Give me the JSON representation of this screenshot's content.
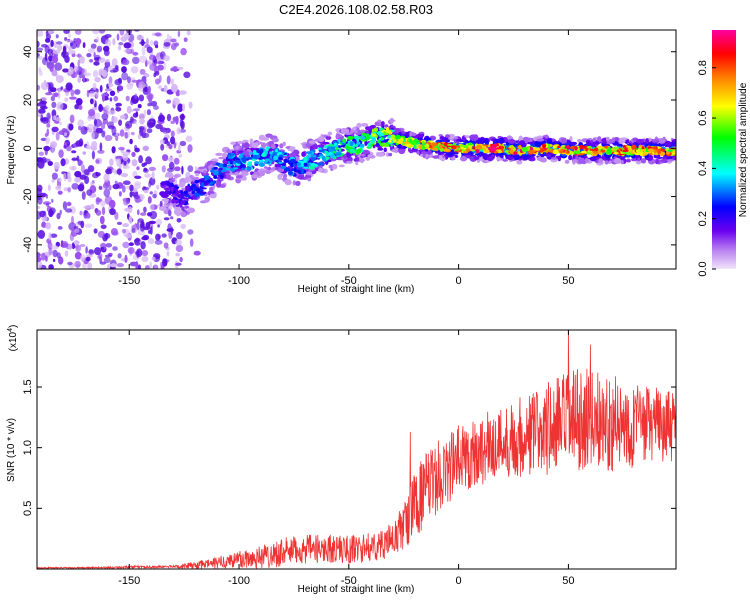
{
  "title": "C2E4.2026.108.02.58.R03",
  "chart_data": [
    {
      "type": "heatmap",
      "title": "C2E4.2026.108.02.58.R03",
      "xlabel": "Height of straight line (km)",
      "ylabel": "Frequency (Hz)",
      "xlim": [
        -192,
        99
      ],
      "ylim": [
        -50,
        49
      ],
      "xticks": [
        -150,
        -100,
        -50,
        0,
        50
      ],
      "yticks": [
        -40,
        -20,
        0,
        20,
        40
      ],
      "colorbar": {
        "label": "Normalized spectral amplitude",
        "range": [
          0.0,
          0.95
        ],
        "ticks": [
          "0.0",
          "0.2",
          "0.4",
          "0.6",
          "0.8"
        ],
        "colormap": [
          "#e8d8f8",
          "#b070f0",
          "#6a00f0",
          "#0000ff",
          "#00ffff",
          "#00ff00",
          "#ffff00",
          "#ff8000",
          "#ff0000",
          "#ff00a0"
        ]
      },
      "ridge": [
        {
          "x": -135,
          "y": -17,
          "a": 0.2
        },
        {
          "x": -125,
          "y": -20,
          "a": 0.25
        },
        {
          "x": -115,
          "y": -15,
          "a": 0.3
        },
        {
          "x": -105,
          "y": -6,
          "a": 0.35
        },
        {
          "x": -95,
          "y": -5,
          "a": 0.4
        },
        {
          "x": -85,
          "y": -2,
          "a": 0.4
        },
        {
          "x": -75,
          "y": -8,
          "a": 0.35
        },
        {
          "x": -65,
          "y": -4,
          "a": 0.45
        },
        {
          "x": -55,
          "y": 0,
          "a": 0.5
        },
        {
          "x": -45,
          "y": 2,
          "a": 0.55
        },
        {
          "x": -38,
          "y": 5,
          "a": 0.6
        },
        {
          "x": -30,
          "y": 4,
          "a": 0.65
        },
        {
          "x": -20,
          "y": 2,
          "a": 0.75
        },
        {
          "x": -10,
          "y": 1,
          "a": 0.8
        },
        {
          "x": 0,
          "y": 0,
          "a": 0.85
        },
        {
          "x": 10,
          "y": 0,
          "a": 0.9
        },
        {
          "x": 20,
          "y": 0,
          "a": 0.9
        },
        {
          "x": 30,
          "y": -1,
          "a": 0.88
        },
        {
          "x": 40,
          "y": 0,
          "a": 0.9
        },
        {
          "x": 50,
          "y": -1,
          "a": 0.88
        },
        {
          "x": 60,
          "y": -1,
          "a": 0.85
        },
        {
          "x": 70,
          "y": -1,
          "a": 0.85
        },
        {
          "x": 80,
          "y": -1,
          "a": 0.85
        },
        {
          "x": 90,
          "y": -1,
          "a": 0.85
        },
        {
          "x": 99,
          "y": -1,
          "a": 0.8
        }
      ],
      "noise_region": {
        "x_from": -192,
        "x_to": -125,
        "y_from": -50,
        "y_to": 49,
        "a": 0.1
      }
    },
    {
      "type": "line",
      "xlabel": "Height of straight line (km)",
      "ylabel": "SNR (10 * v/v)",
      "yscale_label": "(x10",
      "yscale_exp": "4",
      "yscale_suffix": ")",
      "xlim": [
        -192,
        99
      ],
      "ylim": [
        0,
        1.97
      ],
      "xticks": [
        -150,
        -100,
        -50,
        0,
        50
      ],
      "yticks": [
        0.5,
        1.0,
        1.5
      ],
      "ytick_labels": [
        "0.5",
        "1.0",
        "1.5"
      ],
      "series": [
        {
          "name": "SNR",
          "color": "#ee3333",
          "x": [
            -192,
            -170,
            -150,
            -130,
            -120,
            -110,
            -100,
            -90,
            -80,
            -70,
            -60,
            -50,
            -45,
            -40,
            -35,
            -30,
            -25,
            -22,
            -20,
            -15,
            -10,
            -5,
            0,
            10,
            20,
            30,
            40,
            50,
            60,
            70,
            80,
            90,
            99
          ],
          "mean": [
            0.01,
            0.01,
            0.015,
            0.02,
            0.03,
            0.05,
            0.08,
            0.1,
            0.14,
            0.16,
            0.17,
            0.16,
            0.17,
            0.18,
            0.2,
            0.24,
            0.35,
            0.45,
            0.55,
            0.65,
            0.75,
            0.82,
            0.9,
            0.98,
            1.05,
            1.1,
            1.15,
            1.2,
            1.25,
            1.2,
            1.18,
            1.2,
            1.15
          ],
          "spread": [
            0.005,
            0.005,
            0.01,
            0.01,
            0.03,
            0.05,
            0.08,
            0.1,
            0.12,
            0.12,
            0.12,
            0.12,
            0.12,
            0.12,
            0.12,
            0.15,
            0.2,
            0.25,
            0.3,
            0.3,
            0.3,
            0.3,
            0.3,
            0.3,
            0.3,
            0.35,
            0.4,
            0.45,
            0.4,
            0.4,
            0.35,
            0.3,
            0.3
          ],
          "peaks": [
            {
              "x": -22,
              "y": 1.13
            },
            {
              "x": 50,
              "y": 1.97
            },
            {
              "x": 60,
              "y": 1.85
            }
          ]
        }
      ]
    }
  ]
}
